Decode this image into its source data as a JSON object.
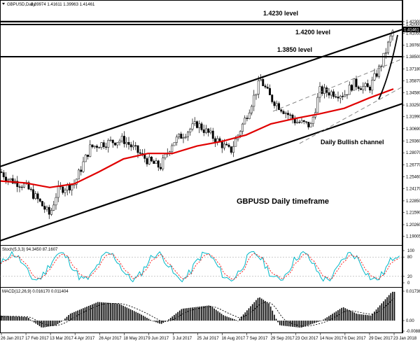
{
  "header": {
    "symbol": "GBPUSD,Daily",
    "ohlc": "1.39974 1.41611 1.39963 1.41461"
  },
  "annotations": {
    "level_14230": "1.4230 level",
    "level_14200": "1.4200 level",
    "level_13850": "1.3850 level",
    "channel": "Daily Bullish channel",
    "timeframe": "GBPUSD Daily timeframe"
  },
  "chart_data": {
    "type": "candlestick",
    "price_axis": {
      "ticks": [
        "1.42300",
        "1.42000",
        "1.41461",
        "1.41055",
        "1.39760",
        "1.38500",
        "1.37180",
        "1.35870",
        "1.34580",
        "1.33250",
        "1.31990",
        "1.30690",
        "1.29360",
        "1.28070",
        "1.26770",
        "1.25460",
        "1.24170",
        "1.22850",
        "1.21590",
        "1.20260",
        "1.19005"
      ],
      "ylim": [
        1.19,
        1.4248
      ]
    },
    "date_axis": {
      "ticks": [
        "26 Jan 2017",
        "17 Feb 2017",
        "13 Mar 2017",
        "4 Apr 2017",
        "26 Apr 2017",
        "18 May 2017",
        "9 Jun 2017",
        "3 Jul 2017",
        "25 Jul 2017",
        "16 Aug 2017",
        "7 Sep 2017",
        "29 Sep 2017",
        "23 Oct 2017",
        "14 Nov 2017",
        "6 Dec 2017",
        "29 Dec 2017",
        "23 Jan 2018"
      ]
    },
    "levels": [
      {
        "label": "1.4230 level",
        "value": 1.423
      },
      {
        "label": "1.4200 level",
        "value": 1.42
      },
      {
        "label": "1.3850 level",
        "value": 1.385
      }
    ],
    "close_path": [
      {
        "date": "26 Jan 2017",
        "close": 1.26
      },
      {
        "date": "2 Feb 2017",
        "close": 1.252
      },
      {
        "date": "17 Feb 2017",
        "close": 1.245
      },
      {
        "date": "1 Mar 2017",
        "close": 1.23
      },
      {
        "date": "13 Mar 2017",
        "close": 1.213
      },
      {
        "date": "20 Mar 2017",
        "close": 1.24
      },
      {
        "date": "4 Apr 2017",
        "close": 1.247
      },
      {
        "date": "18 Apr 2017",
        "close": 1.286
      },
      {
        "date": "26 Apr 2017",
        "close": 1.29
      },
      {
        "date": "18 May 2017",
        "close": 1.295
      },
      {
        "date": "9 Jun 2017",
        "close": 1.272
      },
      {
        "date": "21 Jun 2017",
        "close": 1.265
      },
      {
        "date": "3 Jul 2017",
        "close": 1.292
      },
      {
        "date": "25 Jul 2017",
        "close": 1.312
      },
      {
        "date": "16 Aug 2017",
        "close": 1.29
      },
      {
        "date": "24 Aug 2017",
        "close": 1.282
      },
      {
        "date": "7 Sep 2017",
        "close": 1.32
      },
      {
        "date": "20 Sep 2017",
        "close": 1.36
      },
      {
        "date": "29 Sep 2017",
        "close": 1.34
      },
      {
        "date": "23 Oct 2017",
        "close": 1.315
      },
      {
        "date": "6 Nov 2017",
        "close": 1.31
      },
      {
        "date": "14 Nov 2017",
        "close": 1.348
      },
      {
        "date": "6 Dec 2017",
        "close": 1.344
      },
      {
        "date": "15 Dec 2017",
        "close": 1.356
      },
      {
        "date": "29 Dec 2017",
        "close": 1.35
      },
      {
        "date": "10 Jan 2018",
        "close": 1.375
      },
      {
        "date": "23 Jan 2018",
        "close": 1.4146
      }
    ],
    "moving_average": [
      {
        "date": "26 Jan 2017",
        "value": 1.25
      },
      {
        "date": "17 Feb 2017",
        "value": 1.248
      },
      {
        "date": "13 Mar 2017",
        "value": 1.243
      },
      {
        "date": "4 Apr 2017",
        "value": 1.247
      },
      {
        "date": "26 Apr 2017",
        "value": 1.26
      },
      {
        "date": "18 May 2017",
        "value": 1.274
      },
      {
        "date": "9 Jun 2017",
        "value": 1.28
      },
      {
        "date": "3 Jul 2017",
        "value": 1.28
      },
      {
        "date": "25 Jul 2017",
        "value": 1.288
      },
      {
        "date": "16 Aug 2017",
        "value": 1.293
      },
      {
        "date": "7 Sep 2017",
        "value": 1.3
      },
      {
        "date": "29 Sep 2017",
        "value": 1.312
      },
      {
        "date": "23 Oct 2017",
        "value": 1.318
      },
      {
        "date": "14 Nov 2017",
        "value": 1.323
      },
      {
        "date": "6 Dec 2017",
        "value": 1.329
      },
      {
        "date": "29 Dec 2017",
        "value": 1.34
      },
      {
        "date": "23 Jan 2018",
        "value": 1.35
      }
    ]
  },
  "stochastic": {
    "label": "Stoch(5,3,3) 94.3450 87.1607",
    "ticks": [
      "100",
      "80",
      "20",
      "0"
    ]
  },
  "macd": {
    "label": "MACD(12,26,9) 0.016170 0.011404",
    "ticks": [
      "0.017361",
      "0.00",
      "-0.008851"
    ]
  }
}
